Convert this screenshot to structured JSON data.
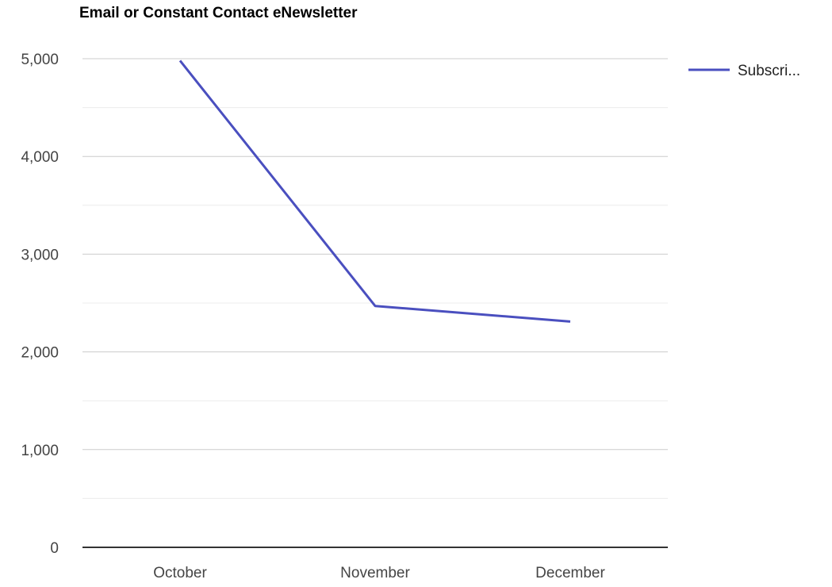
{
  "chart_data": {
    "type": "line",
    "title": "Email or Constant Contact eNewsletter",
    "xlabel": "",
    "ylabel": "",
    "categories": [
      "October",
      "November",
      "December"
    ],
    "series": [
      {
        "name": "Subscri...",
        "values": [
          4980,
          2470,
          2310
        ]
      }
    ],
    "ylim": [
      0,
      5000
    ],
    "yticks": [
      0,
      1000,
      2000,
      3000,
      4000,
      5000
    ],
    "ytick_labels": [
      "0",
      "1,000",
      "2,000",
      "3,000",
      "4,000",
      "5,000"
    ],
    "grid": true,
    "legend": "right",
    "colors": {
      "series": "#4a4fbf",
      "grid": "#cccccc",
      "minor_grid": "#ececec",
      "baseline": "#333333"
    }
  }
}
